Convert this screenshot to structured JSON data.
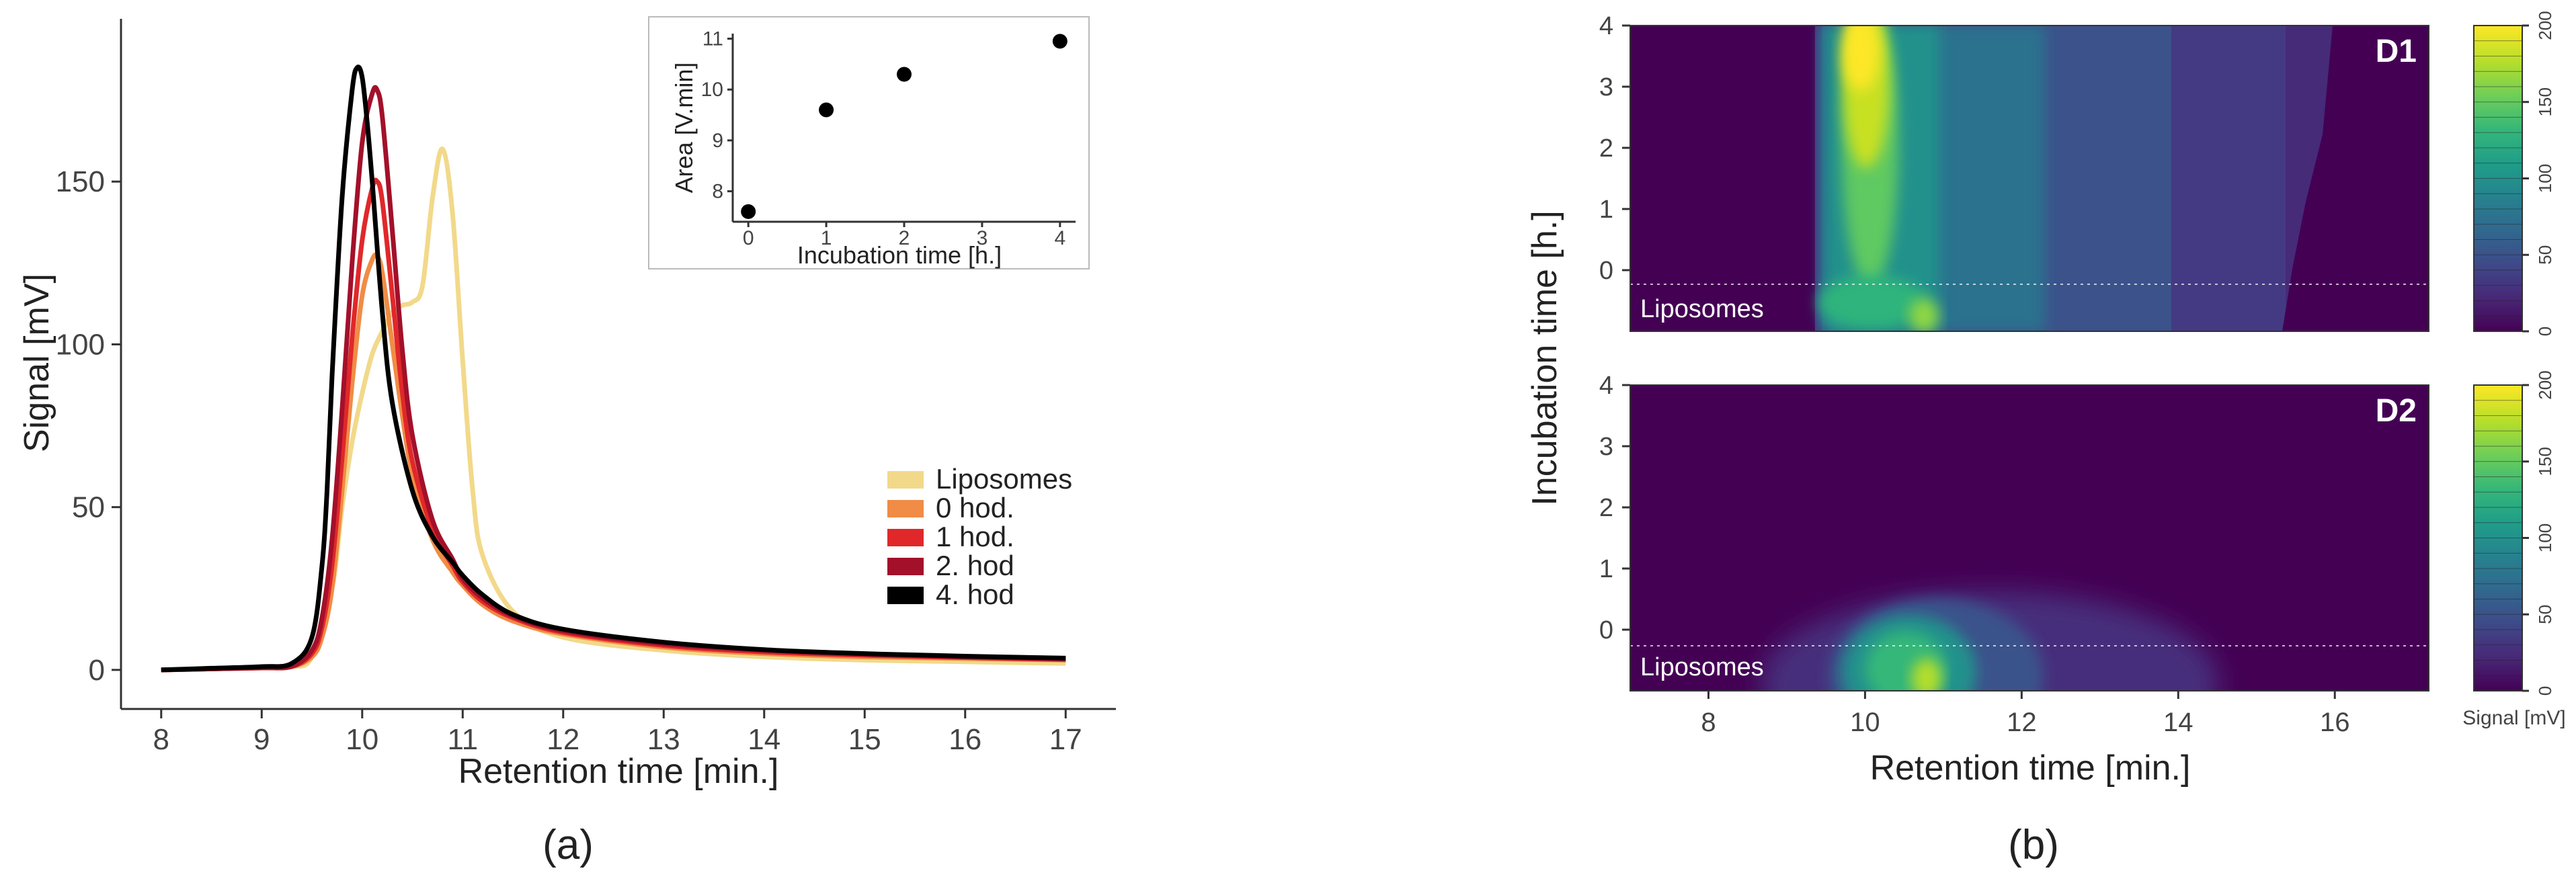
{
  "chart_data": [
    {
      "panel": "(a)",
      "type": "line",
      "xlabel": "Retention time [min.]",
      "ylabel": "Signal [mV]",
      "xlim": [
        7.6,
        17.5
      ],
      "ylim": [
        -12,
        200
      ],
      "xticks": [
        8,
        9,
        10,
        11,
        12,
        13,
        14,
        15,
        16,
        17
      ],
      "yticks": [
        0,
        50,
        100,
        150
      ],
      "legend_position": "right",
      "series": [
        {
          "name": "Liposomes",
          "color": "#f2d98a",
          "x": [
            8,
            8.5,
            9,
            9.3,
            9.5,
            9.7,
            9.8,
            9.9,
            10.0,
            10.1,
            10.2,
            10.3,
            10.4,
            10.5,
            10.6,
            10.7,
            10.8,
            10.9,
            11.0,
            11.1,
            11.2,
            11.5,
            12,
            13,
            14,
            15,
            16,
            17
          ],
          "y": [
            0,
            0.3,
            0.6,
            1,
            4,
            25,
            50,
            70,
            85,
            97,
            104,
            110,
            112,
            113,
            118,
            145,
            160,
            140,
            95,
            55,
            35,
            18,
            10,
            6,
            4,
            3,
            2.5,
            2
          ]
        },
        {
          "name": "0 hod.",
          "color": "#f08c45",
          "x": [
            8,
            8.5,
            9,
            9.3,
            9.5,
            9.6,
            9.7,
            9.8,
            9.9,
            10.0,
            10.1,
            10.15,
            10.2,
            10.3,
            10.4,
            10.5,
            10.7,
            10.9,
            11.0,
            11.2,
            11.5,
            12,
            13,
            14,
            15,
            16,
            17
          ],
          "y": [
            0,
            0.3,
            0.6,
            1,
            4,
            10,
            25,
            55,
            88,
            115,
            126,
            127,
            122,
            100,
            78,
            60,
            40,
            30,
            26,
            20,
            15,
            11,
            7,
            5,
            4,
            3.5,
            3
          ]
        },
        {
          "name": "1 hod.",
          "color": "#e0282a",
          "x": [
            8,
            8.5,
            9,
            9.3,
            9.5,
            9.6,
            9.7,
            9.8,
            9.9,
            10.0,
            10.1,
            10.15,
            10.2,
            10.3,
            10.4,
            10.5,
            10.7,
            10.9,
            11.0,
            11.2,
            11.5,
            12,
            13,
            14,
            15,
            16,
            17
          ],
          "y": [
            0,
            0.3,
            0.6,
            1,
            5,
            13,
            32,
            65,
            102,
            132,
            148,
            150,
            144,
            115,
            85,
            64,
            43,
            32,
            27,
            21,
            16,
            11.5,
            7.5,
            5.5,
            4.5,
            3.8,
            3.2
          ]
        },
        {
          "name": "2. hod",
          "color": "#a3102a",
          "x": [
            8,
            8.5,
            9,
            9.3,
            9.5,
            9.6,
            9.7,
            9.8,
            9.9,
            10.0,
            10.1,
            10.15,
            10.2,
            10.3,
            10.4,
            10.5,
            10.7,
            10.9,
            11.0,
            11.2,
            11.5,
            12,
            13,
            14,
            15,
            16,
            17
          ],
          "y": [
            0,
            0.3,
            0.7,
            1.2,
            6,
            16,
            40,
            80,
            125,
            162,
            177,
            178,
            170,
            135,
            98,
            72,
            46,
            34,
            28,
            22,
            16.5,
            12,
            8,
            6,
            4.8,
            4,
            3.4
          ]
        },
        {
          "name": "4. hod",
          "color": "#000000",
          "x": [
            8,
            8.5,
            9,
            9.3,
            9.5,
            9.6,
            9.65,
            9.7,
            9.8,
            9.9,
            9.95,
            10.0,
            10.05,
            10.1,
            10.2,
            10.3,
            10.5,
            10.7,
            10.9,
            11.0,
            11.2,
            11.5,
            12,
            13,
            14,
            15,
            16,
            17
          ],
          "y": [
            0,
            0.5,
            1,
            2,
            10,
            32,
            55,
            90,
            145,
            178,
            185,
            182,
            168,
            150,
            110,
            82,
            55,
            41,
            33,
            29,
            23,
            17,
            12.5,
            8.5,
            6.2,
            5,
            4.2,
            3.6
          ]
        }
      ]
    },
    {
      "panel": "(a) inset",
      "type": "scatter",
      "xlabel": "Incubation time [h.]",
      "ylabel": "Area [V.min]",
      "xlim": [
        -0.2,
        4.2
      ],
      "ylim": [
        7.4,
        11.1
      ],
      "xticks": [
        0,
        1,
        2,
        3,
        4
      ],
      "yticks": [
        8,
        9,
        10,
        11
      ],
      "x": [
        0,
        1,
        2,
        4
      ],
      "y": [
        7.6,
        9.6,
        10.3,
        10.95
      ]
    },
    {
      "panel": "(b)",
      "type": "heatmap",
      "xlabel": "Retention time [min.]",
      "ylabel": "Incubation time [h.]",
      "xlim": [
        7,
        17.2
      ],
      "xticks": [
        8,
        10,
        12,
        14,
        16
      ],
      "ylim": [
        -1,
        4
      ],
      "yticks": [
        0,
        1,
        2,
        3,
        4
      ],
      "colorbar": {
        "label": "Signal [mV]",
        "range": [
          0,
          200
        ],
        "ticks": [
          0,
          50,
          100,
          150,
          200
        ],
        "colors": [
          "#440154",
          "#482878",
          "#3e4a89",
          "#31688e",
          "#26828e",
          "#1f9e89",
          "#35b779",
          "#6ece58",
          "#b5de2b",
          "#fde725"
        ]
      },
      "panels": [
        {
          "name": "D1",
          "annotation": "Liposomes",
          "description_peak_retention": 10.1,
          "description_peak_signal": 190
        },
        {
          "name": "D2",
          "annotation": "Liposomes",
          "description_peak_retention": 10.8,
          "description_peak_signal": 150
        }
      ]
    }
  ],
  "captions": {
    "a": "(a)",
    "b": "(b)"
  }
}
